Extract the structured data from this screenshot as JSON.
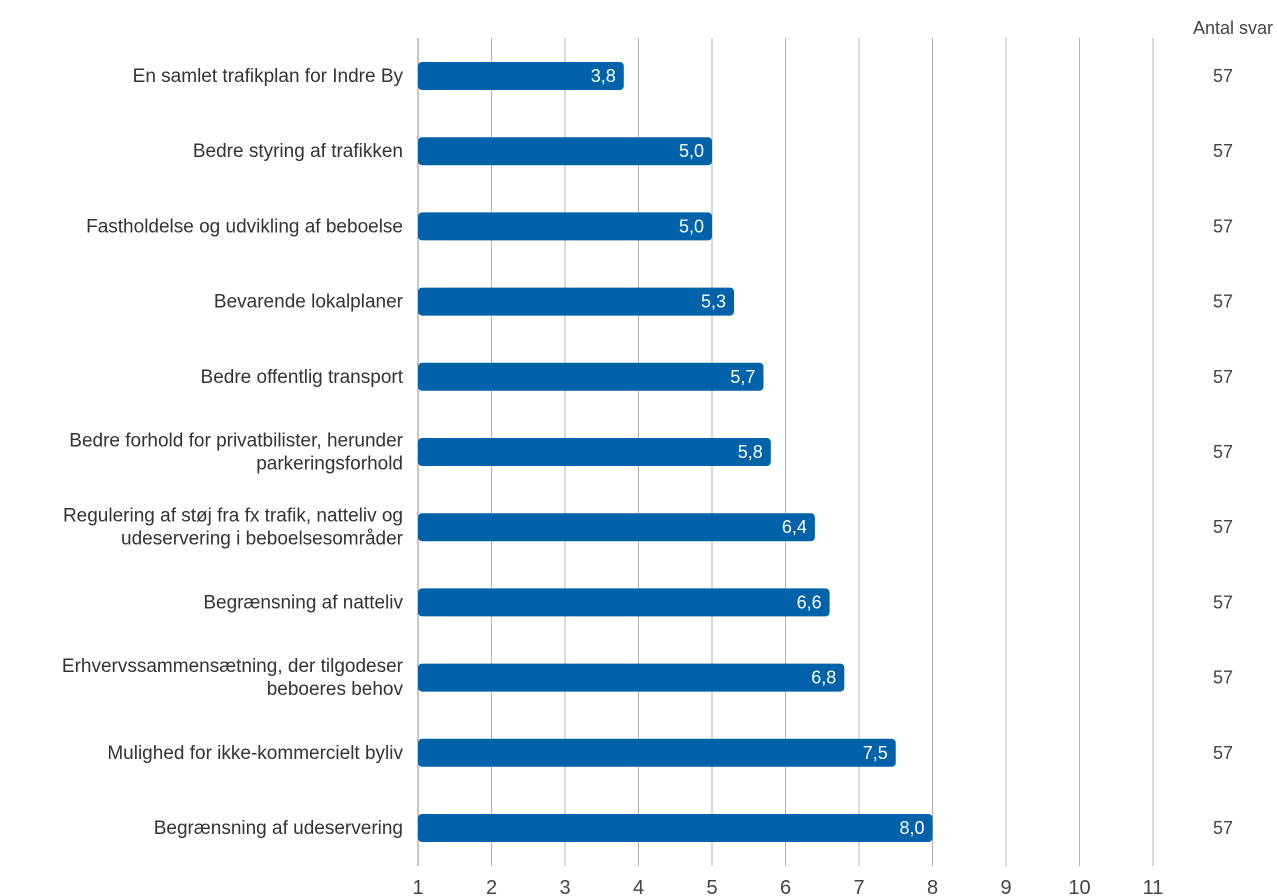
{
  "chart_data": {
    "type": "bar",
    "orientation": "horizontal",
    "categories": [
      [
        "En samlet trafikplan for Indre By"
      ],
      [
        "Bedre styring af trafikken"
      ],
      [
        "Fastholdelse og udvikling af beboelse"
      ],
      [
        "Bevarende lokalplaner"
      ],
      [
        "Bedre offentlig transport"
      ],
      [
        "Bedre forhold for privatbilister, herunder",
        "parkeringsforhold"
      ],
      [
        "Regulering af støj fra fx trafik, natteliv og",
        "udeservering i beboelsesområder"
      ],
      [
        "Begrænsning af natteliv"
      ],
      [
        "Erhvervssammensætning, der tilgodeser",
        "beboeres behov"
      ],
      [
        "Mulighed for ikke-kommercielt byliv"
      ],
      [
        "Begrænsning af udeservering"
      ]
    ],
    "values": [
      3.8,
      5.0,
      5.0,
      5.3,
      5.7,
      5.8,
      6.4,
      6.6,
      6.8,
      7.5,
      8.0
    ],
    "value_labels": [
      "3,8",
      "5,0",
      "5,0",
      "5,3",
      "5,7",
      "5,8",
      "6,4",
      "6,6",
      "6,8",
      "7,5",
      "8,0"
    ],
    "counts_header": "Antal svar",
    "counts": [
      "57",
      "57",
      "57",
      "57",
      "57",
      "57",
      "57",
      "57",
      "57",
      "57",
      "57"
    ],
    "x_ticks": [
      "1",
      "2",
      "3",
      "4",
      "5",
      "6",
      "7",
      "8",
      "9",
      "10",
      "11"
    ],
    "xlim": [
      1,
      11
    ],
    "grid": true,
    "bar_color": "#0063a9",
    "grid_color": "#b3b3b3"
  }
}
